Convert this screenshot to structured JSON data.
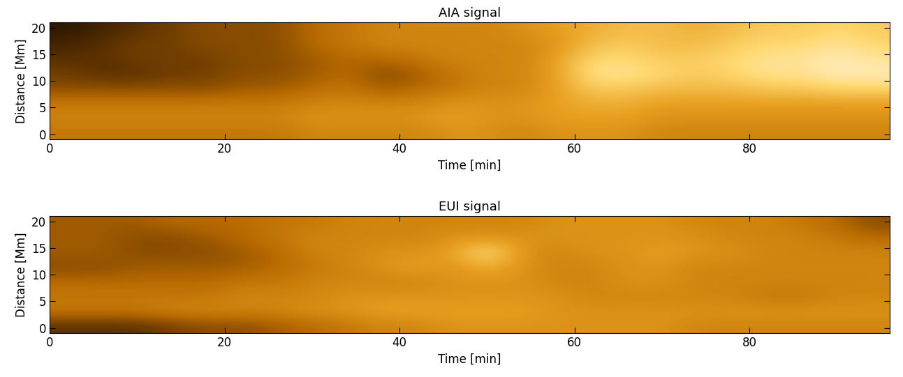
{
  "chart_data": [
    {
      "type": "heatmap",
      "title": "AIA signal",
      "x_label": "Time [min]",
      "y_label": "Distance [Mm]",
      "xlim": [
        0,
        96
      ],
      "ylim": [
        -1,
        21
      ],
      "xticks": [
        0,
        20,
        40,
        60,
        80
      ],
      "yticks": [
        0,
        5,
        10,
        15,
        20
      ],
      "color_range": [
        0,
        1
      ],
      "cells": [
        [
          0.45,
          0.45,
          0.45,
          0.45,
          0.45,
          0.45,
          0.45,
          0.5,
          0.5,
          0.5,
          0.5,
          0.55,
          0.55,
          0.5,
          0.55,
          0.55,
          0.55,
          0.5,
          0.5,
          0.5,
          0.5,
          0.5,
          0.5,
          0.5
        ],
        [
          0.5,
          0.5,
          0.5,
          0.5,
          0.5,
          0.5,
          0.5,
          0.55,
          0.55,
          0.55,
          0.55,
          0.6,
          0.55,
          0.55,
          0.6,
          0.6,
          0.6,
          0.55,
          0.55,
          0.55,
          0.55,
          0.55,
          0.55,
          0.55
        ],
        [
          0.45,
          0.45,
          0.45,
          0.45,
          0.45,
          0.45,
          0.45,
          0.5,
          0.5,
          0.5,
          0.5,
          0.55,
          0.55,
          0.55,
          0.6,
          0.65,
          0.65,
          0.6,
          0.6,
          0.6,
          0.6,
          0.6,
          0.6,
          0.6
        ],
        [
          0.3,
          0.3,
          0.3,
          0.3,
          0.3,
          0.35,
          0.35,
          0.4,
          0.45,
          0.35,
          0.4,
          0.45,
          0.5,
          0.5,
          0.6,
          0.75,
          0.75,
          0.7,
          0.7,
          0.7,
          0.75,
          0.75,
          0.8,
          0.8
        ],
        [
          0.25,
          0.2,
          0.2,
          0.25,
          0.25,
          0.3,
          0.3,
          0.35,
          0.4,
          0.3,
          0.35,
          0.45,
          0.5,
          0.5,
          0.6,
          0.85,
          0.85,
          0.8,
          0.75,
          0.8,
          0.85,
          0.85,
          0.9,
          0.9
        ],
        [
          0.2,
          0.2,
          0.25,
          0.25,
          0.25,
          0.3,
          0.3,
          0.35,
          0.4,
          0.4,
          0.45,
          0.5,
          0.5,
          0.5,
          0.6,
          0.8,
          0.8,
          0.75,
          0.75,
          0.8,
          0.85,
          0.85,
          0.9,
          0.85
        ],
        [
          0.15,
          0.2,
          0.25,
          0.25,
          0.3,
          0.3,
          0.3,
          0.4,
          0.45,
          0.5,
          0.5,
          0.5,
          0.5,
          0.5,
          0.55,
          0.7,
          0.75,
          0.7,
          0.7,
          0.75,
          0.8,
          0.8,
          0.85,
          0.8
        ],
        [
          0.1,
          0.15,
          0.2,
          0.25,
          0.3,
          0.3,
          0.3,
          0.4,
          0.45,
          0.5,
          0.5,
          0.5,
          0.5,
          0.55,
          0.6,
          0.65,
          0.7,
          0.7,
          0.65,
          0.7,
          0.75,
          0.75,
          0.8,
          0.75
        ]
      ]
    },
    {
      "type": "heatmap",
      "title": "EUI signal",
      "x_label": "Time [min]",
      "y_label": "Distance [Mm]",
      "xlim": [
        0,
        96
      ],
      "ylim": [
        -1,
        21
      ],
      "xticks": [
        0,
        20,
        40,
        60,
        80
      ],
      "yticks": [
        0,
        5,
        10,
        15,
        20
      ],
      "color_range": [
        0,
        1
      ],
      "cells": [
        [
          0.2,
          0.2,
          0.2,
          0.25,
          0.3,
          0.3,
          0.35,
          0.4,
          0.45,
          0.5,
          0.5,
          0.55,
          0.55,
          0.55,
          0.55,
          0.55,
          0.55,
          0.55,
          0.5,
          0.5,
          0.5,
          0.5,
          0.5,
          0.5
        ],
        [
          0.45,
          0.45,
          0.45,
          0.5,
          0.5,
          0.5,
          0.5,
          0.55,
          0.55,
          0.6,
          0.6,
          0.6,
          0.6,
          0.6,
          0.55,
          0.55,
          0.55,
          0.55,
          0.55,
          0.55,
          0.55,
          0.55,
          0.55,
          0.55
        ],
        [
          0.45,
          0.45,
          0.45,
          0.45,
          0.45,
          0.5,
          0.5,
          0.5,
          0.55,
          0.55,
          0.55,
          0.55,
          0.55,
          0.55,
          0.55,
          0.5,
          0.5,
          0.5,
          0.5,
          0.5,
          0.45,
          0.45,
          0.5,
          0.5
        ],
        [
          0.4,
          0.4,
          0.4,
          0.4,
          0.4,
          0.45,
          0.45,
          0.5,
          0.5,
          0.5,
          0.5,
          0.55,
          0.55,
          0.55,
          0.5,
          0.5,
          0.55,
          0.55,
          0.5,
          0.5,
          0.5,
          0.5,
          0.5,
          0.5
        ],
        [
          0.3,
          0.3,
          0.35,
          0.35,
          0.35,
          0.35,
          0.4,
          0.45,
          0.5,
          0.55,
          0.6,
          0.55,
          0.65,
          0.55,
          0.5,
          0.5,
          0.55,
          0.55,
          0.5,
          0.5,
          0.5,
          0.5,
          0.5,
          0.5
        ],
        [
          0.35,
          0.35,
          0.3,
          0.3,
          0.3,
          0.35,
          0.4,
          0.5,
          0.5,
          0.55,
          0.55,
          0.6,
          0.85,
          0.55,
          0.5,
          0.55,
          0.55,
          0.6,
          0.55,
          0.55,
          0.5,
          0.5,
          0.5,
          0.5
        ],
        [
          0.35,
          0.35,
          0.3,
          0.3,
          0.35,
          0.4,
          0.45,
          0.5,
          0.5,
          0.5,
          0.5,
          0.55,
          0.55,
          0.55,
          0.55,
          0.55,
          0.55,
          0.55,
          0.55,
          0.5,
          0.5,
          0.5,
          0.45,
          0.4
        ],
        [
          0.35,
          0.35,
          0.35,
          0.4,
          0.4,
          0.4,
          0.45,
          0.45,
          0.5,
          0.5,
          0.5,
          0.5,
          0.5,
          0.5,
          0.55,
          0.55,
          0.55,
          0.55,
          0.5,
          0.5,
          0.5,
          0.45,
          0.4,
          0.3
        ]
      ]
    }
  ]
}
